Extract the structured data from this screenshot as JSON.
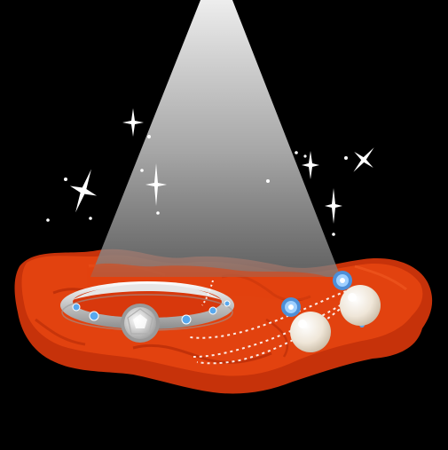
{
  "scene": {
    "background_color": "#000000",
    "spotlight_color": "#ffffff",
    "cloth_color": "#d8380c",
    "cloth_highlight_color": "#ee4a14",
    "ring_color": "#b9b9b9",
    "diamond_color": "#f2f2f2",
    "gem_color": "#58a8ee",
    "pearl_color": "#f1ebe0",
    "icons": [
      "spotlight-icon",
      "sparkle-icon",
      "ring-icon",
      "diamond-icon",
      "sapphire-icon",
      "pearl-icon",
      "chain-icon"
    ]
  }
}
